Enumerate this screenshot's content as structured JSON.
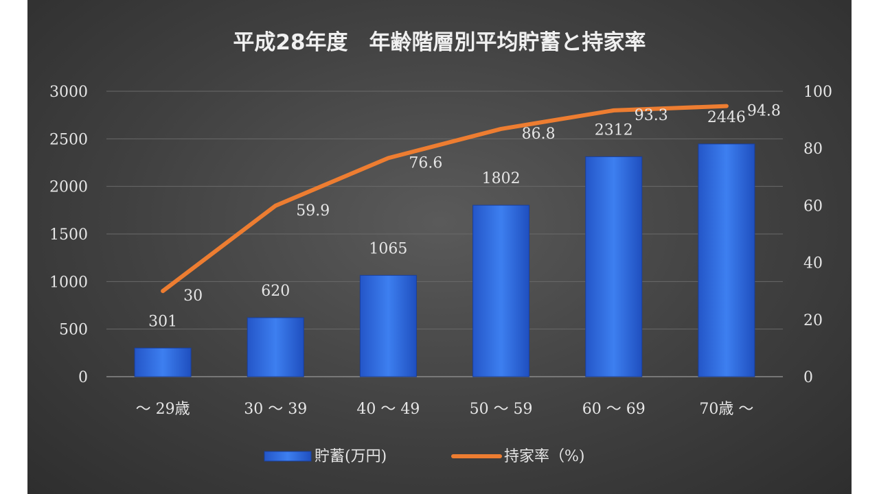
{
  "chart_data": {
    "type": "bar",
    "title": "平成28年度　年齢階層別平均貯蓄と持家率",
    "categories": [
      "～ 29歳",
      "30 ～ 39",
      "40 ～ 49",
      "50 ～ 59",
      "60 ～ 69",
      "70歳 ～"
    ],
    "series": [
      {
        "name": "貯蓄(万円)",
        "type": "bar",
        "axis": "left",
        "values": [
          301,
          620,
          1065,
          1802,
          2312,
          2446
        ],
        "color": "#2f6fe0"
      },
      {
        "name": "持家率（%)",
        "type": "line",
        "axis": "right",
        "values": [
          30,
          59.9,
          76.6,
          86.8,
          93.3,
          94.8
        ],
        "color": "#ed7d31"
      }
    ],
    "y_left": {
      "min": 0,
      "max": 3000,
      "ticks": [
        0,
        500,
        1000,
        1500,
        2000,
        2500,
        3000
      ]
    },
    "y_right": {
      "min": 0,
      "max": 100,
      "ticks": [
        0,
        20,
        40,
        60,
        80,
        100
      ]
    },
    "grid": true,
    "legend_position": "bottom",
    "colors": {
      "background": "#404040",
      "text": "#e6e6e6",
      "grid": "#6a6a6a"
    }
  }
}
